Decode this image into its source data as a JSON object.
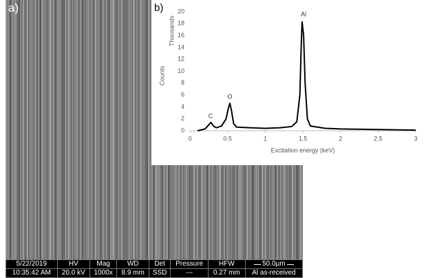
{
  "panels": {
    "a": "a)",
    "b": "b)"
  },
  "sem": {
    "info_bar": {
      "header": [
        "5/22/2019",
        "HV",
        "Mag",
        "WD",
        "Det",
        "Pressure",
        "HFW",
        "50.0µm"
      ],
      "row": [
        "10:35:42 AM",
        "20.0 kV",
        "1000x",
        "8.9 mm",
        "SSD",
        "---",
        "0.27 mm",
        "Al as-received"
      ]
    }
  },
  "chart_data": {
    "type": "line",
    "y_label": "Counts",
    "y_unit_label": "Thousands",
    "x_label": "Excitation energy (keV)",
    "annotations": [
      "C",
      "O",
      "Al"
    ],
    "x": [
      0.1,
      0.2,
      0.25,
      0.28,
      0.31,
      0.35,
      0.42,
      0.48,
      0.51,
      0.53,
      0.55,
      0.58,
      0.62,
      0.8,
      1.0,
      1.2,
      1.35,
      1.42,
      1.46,
      1.48,
      1.49,
      1.51,
      1.53,
      1.56,
      1.6,
      1.8,
      2.0,
      2.5,
      3.0
    ],
    "values": [
      0,
      0.3,
      1.0,
      1.4,
      0.8,
      0.5,
      0.8,
      2.0,
      3.8,
      4.6,
      3.5,
      1.2,
      0.6,
      0.5,
      0.4,
      0.5,
      0.7,
      1.5,
      6,
      15,
      18.3,
      16,
      8,
      2,
      0.8,
      0.4,
      0.3,
      0.2,
      0.1
    ],
    "color": "#000000",
    "xlim": [
      0,
      3
    ],
    "xticks": [
      0,
      0.5,
      1,
      1.5,
      2,
      2.5,
      3
    ],
    "ylim": [
      0,
      20
    ],
    "yticks": [
      0,
      2,
      4,
      6,
      8,
      10,
      12,
      14,
      16,
      18,
      20
    ],
    "grid": false
  }
}
